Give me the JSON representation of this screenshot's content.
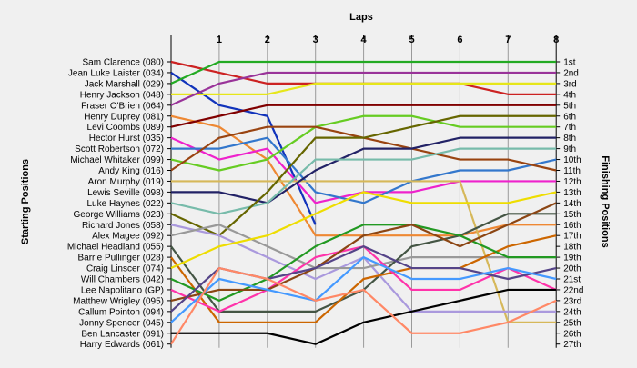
{
  "chart_data": {
    "type": "line",
    "title": "",
    "top_axis_label": "Laps",
    "left_axis_label": "Starting Positions",
    "right_axis_label": "Finishing Positions",
    "laps": [
      "1",
      "2",
      "3",
      "4",
      "5",
      "6",
      "7",
      "8"
    ],
    "start_labels": [
      "Sam Clarence (080)",
      "Jean Luke Laister (034)",
      "Jack Marshall (029)",
      "Henry Jackson (048)",
      "Fraser O'Brien (064)",
      "Henry Duprey (081)",
      "Levi Coombs (089)",
      "Hector Hurst (035)",
      "Scott Robertson (072)",
      "Michael Whitaker (099)",
      "Andy King (016)",
      "Aron Murphy (019)",
      "Lewis Seville (098)",
      "Luke Haynes (022)",
      "George Williams (023)",
      "Richard Jones (058)",
      "Alex Magee (092)",
      "Michael Headland (055)",
      "Barrie Pullinger (028)",
      "Craig Linscer (074)",
      "Will Chambers (042)",
      "Lee Napolitano (GP)",
      "Matthew Wrigley (095)",
      "Callum Pointon (094)",
      "Jonny Spencer (045)",
      "Ben Lancaster (091)",
      "Harry Edwards (061)"
    ],
    "finish_labels": [
      "1st",
      "2nd",
      "3rd",
      "4th",
      "5th",
      "6th",
      "7th",
      "8th",
      "9th",
      "10th",
      "11th",
      "12th",
      "13th",
      "14th",
      "15th",
      "16th",
      "17th",
      "18th",
      "19th",
      "20th",
      "21st",
      "22nd",
      "23rd",
      "24th",
      "25th",
      "26th",
      "27th"
    ],
    "series": [
      {
        "color": "#cc2222",
        "positions": [
          1,
          2,
          3,
          3,
          3,
          3,
          3,
          4,
          4
        ]
      },
      {
        "color": "#1133bb",
        "positions": [
          2,
          5,
          6,
          16
        ]
      },
      {
        "color": "#22aa22",
        "positions": [
          3,
          1,
          1,
          1,
          1,
          1,
          1,
          1,
          1
        ]
      },
      {
        "color": "#e6e61a",
        "positions": [
          4,
          4,
          4,
          3,
          3,
          3,
          3,
          3,
          3
        ]
      },
      {
        "color": "#993399",
        "positions": [
          5,
          3,
          2,
          2,
          2,
          2,
          2,
          2,
          2
        ]
      },
      {
        "color": "#ee8833",
        "positions": [
          6,
          7,
          10,
          17,
          17,
          17,
          17,
          16,
          16
        ]
      },
      {
        "color": "#800000",
        "positions": [
          7,
          6,
          5,
          5,
          5,
          5,
          5,
          5,
          5
        ]
      },
      {
        "color": "#ee22cc",
        "positions": [
          8,
          10,
          9,
          14,
          13,
          13,
          12,
          12,
          12
        ]
      },
      {
        "color": "#3377cc",
        "positions": [
          9,
          9,
          8,
          13,
          14,
          12,
          11,
          11,
          10
        ]
      },
      {
        "color": "#66cc22",
        "positions": [
          10,
          11,
          10,
          7,
          6,
          6,
          7,
          7,
          7
        ]
      },
      {
        "color": "#994411",
        "positions": [
          11,
          8,
          7,
          7,
          8,
          9,
          10,
          10,
          11
        ]
      },
      {
        "color": "#d6b85a",
        "positions": [
          12,
          12,
          12,
          12,
          12,
          12,
          12,
          25,
          25
        ]
      },
      {
        "color": "#222266",
        "positions": [
          13,
          13,
          14,
          11,
          9,
          9,
          8,
          8,
          8
        ]
      },
      {
        "color": "#77bbaa",
        "positions": [
          14,
          15,
          14,
          10,
          10,
          10,
          9,
          9,
          9
        ]
      },
      {
        "color": "#666600",
        "positions": [
          15,
          17,
          13,
          8,
          8,
          7,
          6,
          6,
          6
        ]
      },
      {
        "color": "#aa99dd",
        "positions": [
          16,
          17,
          19,
          21,
          19,
          24,
          24,
          24,
          24
        ]
      },
      {
        "color": "#999999",
        "positions": [
          17,
          16,
          18,
          20,
          20,
          19,
          19,
          19,
          19
        ]
      },
      {
        "color": "#445544",
        "positions": [
          18,
          24,
          24,
          24,
          22,
          18,
          17,
          15,
          15
        ]
      },
      {
        "color": "#cc6600",
        "positions": [
          19,
          25,
          25,
          25,
          21,
          20,
          20,
          18,
          17
        ]
      },
      {
        "color": "#eedd00",
        "positions": [
          20,
          18,
          17,
          15,
          13,
          14,
          14,
          14,
          13
        ]
      },
      {
        "color": "#229922",
        "positions": [
          21,
          23,
          21,
          18,
          16,
          16,
          17,
          19,
          19
        ]
      },
      {
        "color": "#ff33aa",
        "positions": [
          22,
          24,
          22,
          19,
          18,
          22,
          22,
          20,
          22
        ]
      },
      {
        "color": "#8b4513",
        "positions": [
          23,
          22,
          22,
          20,
          17,
          16,
          18,
          16,
          14
        ]
      },
      {
        "color": "#554488",
        "positions": [
          24,
          20,
          21,
          20,
          18,
          20,
          20,
          21,
          20
        ]
      },
      {
        "color": "#4499ff",
        "positions": [
          25,
          21,
          22,
          23,
          19,
          21,
          21,
          20,
          21
        ]
      },
      {
        "color": "#000000",
        "positions": [
          26,
          26,
          26,
          27,
          25,
          24,
          23,
          22,
          22
        ]
      },
      {
        "color": "#ff8866",
        "positions": [
          27,
          20,
          21,
          23,
          22,
          26,
          26,
          25,
          23
        ]
      }
    ]
  }
}
